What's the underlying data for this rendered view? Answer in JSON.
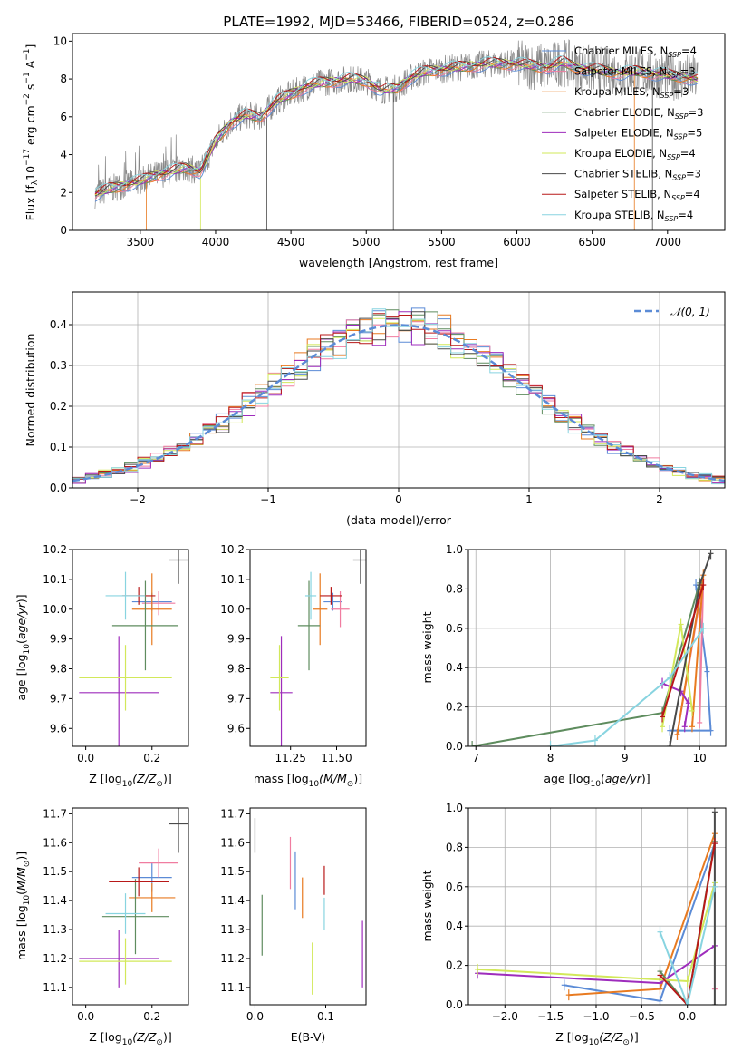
{
  "title": "PLATE=1992, MJD=53466, FIBERID=0524, z=0.286",
  "colors": {
    "Chabrier MILES": "#5b8bd6",
    "Salpeter MILES": "#f07ca0",
    "Kroupa MILES": "#e87a20",
    "Chabrier ELODIE": "#5e8c5e",
    "Salpeter ELODIE": "#9e2cbc",
    "Kroupa ELODIE": "#d2e85a",
    "Chabrier STELIB": "#4a4a4a",
    "Salpeter STELIB": "#b81818",
    "Kroupa STELIB": "#88d4e0",
    "data": "#888888",
    "normal": "#5b8bd6"
  },
  "chart_data": [
    {
      "id": "spectrum",
      "type": "line",
      "title": "PLATE=1992, MJD=53466, FIBERID=0524, z=0.286",
      "xlabel": "wavelength [Angstrom, rest frame]",
      "ylabel_parts": [
        "Flux [f",
        "λ",
        "10",
        "−17",
        " erg cm",
        "−2",
        " s",
        "−1",
        " A",
        "−1",
        "]"
      ],
      "xlim": [
        3050,
        7380
      ],
      "ylim": [
        0,
        10.4
      ],
      "xticks": [
        3500,
        4000,
        4500,
        5000,
        5500,
        6000,
        6500,
        7000
      ],
      "yticks": [
        0,
        2,
        4,
        6,
        8,
        10
      ],
      "continuum": {
        "x": [
          3200,
          3300,
          3400,
          3500,
          3600,
          3700,
          3800,
          3900,
          4000,
          4100,
          4200,
          4300,
          4400,
          4500,
          4600,
          4700,
          4800,
          4900,
          5000,
          5100,
          5200,
          5300,
          5400,
          5500,
          5600,
          5700,
          5800,
          5900,
          6000,
          6100,
          6200,
          6300,
          6400,
          6500,
          6600,
          6700,
          6800,
          6900,
          7000,
          7100,
          7200
        ],
        "y": [
          1.9,
          2.2,
          2.4,
          2.6,
          2.9,
          3.1,
          3.3,
          3.1,
          4.7,
          5.7,
          6.1,
          6.0,
          6.8,
          7.2,
          7.6,
          7.8,
          7.9,
          8.0,
          7.9,
          7.4,
          7.5,
          8.1,
          8.4,
          8.5,
          8.6,
          8.7,
          8.8,
          8.8,
          8.8,
          8.7,
          8.6,
          8.9,
          8.6,
          8.5,
          8.4,
          8.3,
          8.4,
          8.3,
          8.2,
          8.1,
          8.0
        ]
      },
      "legend": [
        {
          "name": "Chabrier MILES",
          "n": "4"
        },
        {
          "name": "Salpeter MILES",
          "n": "3"
        },
        {
          "name": "Kroupa MILES",
          "n": "3"
        },
        {
          "name": "Chabrier ELODIE",
          "n": "3"
        },
        {
          "name": "Salpeter ELODIE",
          "n": "5"
        },
        {
          "name": "Kroupa ELODIE",
          "n": "4"
        },
        {
          "name": "Chabrier STELIB",
          "n": "3"
        },
        {
          "name": "Salpeter STELIB",
          "n": "4"
        },
        {
          "name": "Kroupa STELIB",
          "n": "4"
        }
      ],
      "legend_nssp_label": "N",
      "legend_nssp_sub": "SSP",
      "legend_location": "right"
    },
    {
      "id": "residuals",
      "type": "line",
      "xlabel": "(data-model)/error",
      "ylabel": "Normed distribution",
      "xlim": [
        -2.5,
        2.5
      ],
      "ylim": [
        0,
        0.48
      ],
      "xticks": [
        -2,
        -1,
        0,
        1,
        2
      ],
      "xticklabels": [
        "−2",
        "−1",
        "0",
        "1",
        "2"
      ],
      "yticks": [
        0.0,
        0.1,
        0.2,
        0.3,
        0.4
      ],
      "yticklabels": [
        "0.0",
        "0.1",
        "0.2",
        "0.3",
        "0.4"
      ],
      "bin_width": 0.1,
      "legend": "𝒩(0, 1)",
      "legend_location": "top-right",
      "grid": true
    },
    {
      "id": "age_vs_Z",
      "type": "scatter",
      "xlabel_main": "Z [log",
      "xlabel_sub": "10",
      "xlabel_tail": "(Z/Z",
      "xlabel_end": ")]",
      "ylabel": "age  [log10(age/yr)]",
      "xlim": [
        -0.04,
        0.31
      ],
      "ylim": [
        9.54,
        10.2
      ],
      "xticks": [
        0.0,
        0.2
      ],
      "xticklabels": [
        "0.0",
        "0.2"
      ],
      "yticks": [
        9.6,
        9.7,
        9.8,
        9.9,
        10.0,
        10.1,
        10.2
      ],
      "yticklabels": [
        "9.6",
        "9.7",
        "9.8",
        "9.9",
        "10.0",
        "10.1",
        "10.2"
      ],
      "points": [
        {
          "series": "Chabrier MILES",
          "x": 0.2,
          "y": 10.025,
          "xerr": 0.06,
          "yerr": 0.03
        },
        {
          "series": "Salpeter MILES",
          "x": 0.22,
          "y": 10.02,
          "xerr": 0.05,
          "yerr": 0.04
        },
        {
          "series": "Kroupa MILES",
          "x": 0.2,
          "y": 10.0,
          "xerr": 0.06,
          "yerr": 0.12
        },
        {
          "series": "Chabrier ELODIE",
          "x": 0.18,
          "y": 9.945,
          "xerr": 0.1,
          "yerr": 0.15
        },
        {
          "series": "Salpeter ELODIE",
          "x": 0.1,
          "y": 9.72,
          "xerr": 0.12,
          "yerr": 0.19
        },
        {
          "series": "Kroupa ELODIE",
          "x": 0.12,
          "y": 9.77,
          "xerr": 0.14,
          "yerr": 0.11
        },
        {
          "series": "Chabrier STELIB",
          "x": 0.28,
          "y": 10.165,
          "xerr": 0.03,
          "yerr": 0.08
        },
        {
          "series": "Salpeter STELIB",
          "x": 0.16,
          "y": 10.045,
          "xerr": 0.05,
          "yerr": 0.03
        },
        {
          "series": "Kroupa STELIB",
          "x": 0.12,
          "y": 10.045,
          "xerr": 0.06,
          "yerr": 0.08
        }
      ]
    },
    {
      "id": "age_vs_mass",
      "type": "scatter",
      "xlabel_main": "mass [log",
      "xlabel_sub": "10",
      "xlabel_tail": "(M/M",
      "xlabel_end": ")]",
      "xlim": [
        11.03,
        11.66
      ],
      "ylim": [
        9.54,
        10.2
      ],
      "xticks": [
        11.25,
        11.5
      ],
      "xticklabels": [
        "11.25",
        "11.50"
      ],
      "yticks": [
        9.6,
        9.7,
        9.8,
        9.9,
        10.0,
        10.1,
        10.2
      ],
      "yticklabels": [
        "9.6",
        "9.7",
        "9.8",
        "9.9",
        "10.0",
        "10.1",
        "10.2"
      ],
      "points": [
        {
          "series": "Chabrier MILES",
          "x": 11.48,
          "y": 10.025,
          "xerr": 0.05,
          "yerr": 0.03
        },
        {
          "series": "Salpeter MILES",
          "x": 11.52,
          "y": 10.0,
          "xerr": 0.05,
          "yerr": 0.06
        },
        {
          "series": "Kroupa MILES",
          "x": 11.41,
          "y": 10.0,
          "xerr": 0.04,
          "yerr": 0.12
        },
        {
          "series": "Chabrier ELODIE",
          "x": 11.35,
          "y": 9.945,
          "xerr": 0.06,
          "yerr": 0.15
        },
        {
          "series": "Salpeter ELODIE",
          "x": 11.2,
          "y": 9.72,
          "xerr": 0.06,
          "yerr": 0.19
        },
        {
          "series": "Kroupa ELODIE",
          "x": 11.19,
          "y": 9.77,
          "xerr": 0.05,
          "yerr": 0.11
        },
        {
          "series": "Chabrier STELIB",
          "x": 11.63,
          "y": 10.165,
          "xerr": 0.04,
          "yerr": 0.08
        },
        {
          "series": "Salpeter STELIB",
          "x": 11.47,
          "y": 10.045,
          "xerr": 0.06,
          "yerr": 0.03
        },
        {
          "series": "Kroupa STELIB",
          "x": 11.36,
          "y": 10.045,
          "xerr": 0.03,
          "yerr": 0.08
        }
      ]
    },
    {
      "id": "weight_vs_age",
      "type": "line",
      "xlabel": "age  [log10(age/yr)]",
      "ylabel": "mass weight",
      "xlim": [
        6.9,
        10.35
      ],
      "ylim": [
        0,
        1.0
      ],
      "xticks": [
        7,
        8,
        9,
        10
      ],
      "xticklabels": [
        "7",
        "8",
        "9",
        "10"
      ],
      "yticks": [
        0.0,
        0.2,
        0.4,
        0.6,
        0.8,
        1.0
      ],
      "yticklabels": [
        "0.0",
        "0.2",
        "0.4",
        "0.6",
        "0.8",
        "1.0"
      ],
      "grid": true,
      "series": [
        {
          "name": "Chabrier MILES",
          "x": [
            9.95,
            10.1,
            10.15,
            9.6
          ],
          "y": [
            0.82,
            0.38,
            0.08,
            0.08
          ]
        },
        {
          "name": "Salpeter MILES",
          "x": [
            9.7,
            10.05,
            10.0
          ],
          "y": [
            0.06,
            0.85,
            0.12
          ]
        },
        {
          "name": "Kroupa MILES",
          "x": [
            9.7,
            10.05,
            9.9
          ],
          "y": [
            0.06,
            0.87,
            0.1
          ]
        },
        {
          "name": "Chabrier ELODIE",
          "x": [
            6.95,
            9.5,
            10.0
          ],
          "y": [
            0.0,
            0.17,
            0.83
          ]
        },
        {
          "name": "Salpeter ELODIE",
          "x": [
            9.5,
            9.75,
            9.85,
            9.8
          ],
          "y": [
            0.32,
            0.28,
            0.22,
            0.1
          ]
        },
        {
          "name": "Kroupa ELODIE",
          "x": [
            9.5,
            9.75,
            9.9
          ],
          "y": [
            0.1,
            0.62,
            0.18
          ]
        },
        {
          "name": "Chabrier STELIB",
          "x": [
            9.6,
            10.0,
            10.15
          ],
          "y": [
            0.0,
            0.82,
            0.98
          ]
        },
        {
          "name": "Salpeter STELIB",
          "x": [
            9.5,
            10.05
          ],
          "y": [
            0.15,
            0.82
          ]
        },
        {
          "name": "Kroupa STELIB",
          "x": [
            8.0,
            8.6,
            9.6,
            10.05
          ],
          "y": [
            0.0,
            0.03,
            0.35,
            0.6
          ]
        }
      ]
    },
    {
      "id": "mass_vs_Z",
      "type": "scatter",
      "xlabel_main": "Z [log",
      "xlabel_sub": "10",
      "xlabel_tail": "(Z/Z",
      "xlabel_end": ")]",
      "ylabel": "mass [log10(M/M⊙)]",
      "xlim": [
        -0.04,
        0.31
      ],
      "ylim": [
        11.04,
        11.72
      ],
      "xticks": [
        0.0,
        0.2
      ],
      "xticklabels": [
        "0.0",
        "0.2"
      ],
      "yticks": [
        11.1,
        11.2,
        11.3,
        11.4,
        11.5,
        11.6,
        11.7
      ],
      "yticklabels": [
        "11.1",
        "11.2",
        "11.3",
        "11.4",
        "11.5",
        "11.6",
        "11.7"
      ],
      "points": [
        {
          "series": "Chabrier MILES",
          "x": 0.2,
          "y": 11.48,
          "xerr": 0.06,
          "yerr": 0.05
        },
        {
          "series": "Salpeter MILES",
          "x": 0.22,
          "y": 11.53,
          "xerr": 0.06,
          "yerr": 0.05
        },
        {
          "series": "Kroupa MILES",
          "x": 0.2,
          "y": 11.41,
          "xerr": 0.07,
          "yerr": 0.05
        },
        {
          "series": "Chabrier ELODIE",
          "x": 0.15,
          "y": 11.345,
          "xerr": 0.1,
          "yerr": 0.13
        },
        {
          "series": "Salpeter ELODIE",
          "x": 0.1,
          "y": 11.2,
          "xerr": 0.12,
          "yerr": 0.1
        },
        {
          "series": "Kroupa ELODIE",
          "x": 0.12,
          "y": 11.19,
          "xerr": 0.14,
          "yerr": 0.08
        },
        {
          "series": "Chabrier STELIB",
          "x": 0.28,
          "y": 11.665,
          "xerr": 0.03,
          "yerr": 0.1
        },
        {
          "series": "Salpeter STELIB",
          "x": 0.16,
          "y": 11.465,
          "xerr": 0.09,
          "yerr": 0.05
        },
        {
          "series": "Kroupa STELIB",
          "x": 0.12,
          "y": 11.355,
          "xerr": 0.06,
          "yerr": 0.07
        }
      ]
    },
    {
      "id": "mass_vs_ebv",
      "type": "scatter",
      "xlabel": "E(B-V)",
      "xlim": [
        -0.007,
        0.157
      ],
      "ylim": [
        11.04,
        11.72
      ],
      "xticks": [
        0.0,
        0.1
      ],
      "xticklabels": [
        "0.0",
        "0.1"
      ],
      "yticks": [
        11.1,
        11.2,
        11.3,
        11.4,
        11.5,
        11.6,
        11.7
      ],
      "yticklabels": [
        "11.1",
        "11.2",
        "11.3",
        "11.4",
        "11.5",
        "11.6",
        "11.7"
      ],
      "points": [
        {
          "series": "Chabrier MILES",
          "x": 0.057,
          "y": 11.47,
          "xerr": 0,
          "yerr": 0.1
        },
        {
          "series": "Salpeter MILES",
          "x": 0.05,
          "y": 11.53,
          "xerr": 0,
          "yerr": 0.09
        },
        {
          "series": "Kroupa MILES",
          "x": 0.067,
          "y": 11.41,
          "xerr": 0,
          "yerr": 0.07
        },
        {
          "series": "Chabrier ELODIE",
          "x": 0.01,
          "y": 11.315,
          "xerr": 0,
          "yerr": 0.105
        },
        {
          "series": "Salpeter ELODIE",
          "x": 0.152,
          "y": 11.215,
          "xerr": 0,
          "yerr": 0.115
        },
        {
          "series": "Kroupa ELODIE",
          "x": 0.081,
          "y": 11.165,
          "xerr": 0,
          "yerr": 0.09
        },
        {
          "series": "Chabrier STELIB",
          "x": 0.0,
          "y": 11.625,
          "xerr": 0,
          "yerr": 0.06
        },
        {
          "series": "Salpeter STELIB",
          "x": 0.098,
          "y": 11.47,
          "xerr": 0,
          "yerr": 0.05
        },
        {
          "series": "Kroupa STELIB",
          "x": 0.098,
          "y": 11.355,
          "xerr": 0,
          "yerr": 0.055
        }
      ]
    },
    {
      "id": "weight_vs_Z",
      "type": "line",
      "xlabel_main": "Z [log",
      "xlabel_sub": "10",
      "xlabel_tail": "(Z/Z",
      "xlabel_end": ")]",
      "ylabel": "mass weight",
      "xlim": [
        -2.4,
        0.42
      ],
      "ylim": [
        0,
        1.0
      ],
      "xticks": [
        -2.0,
        -1.5,
        -1.0,
        -0.5,
        0.0
      ],
      "xticklabels": [
        "−2.0",
        "−1.5",
        "−1.0",
        "−0.5",
        "0.0"
      ],
      "yticks": [
        0.0,
        0.2,
        0.4,
        0.6,
        0.8,
        1.0
      ],
      "yticklabels": [
        "0.0",
        "0.2",
        "0.4",
        "0.6",
        "0.8",
        "1.0"
      ],
      "grid": true,
      "series": [
        {
          "name": "Chabrier MILES",
          "x": [
            -1.35,
            -0.3,
            0.3
          ],
          "y": [
            0.1,
            0.02,
            0.82
          ]
        },
        {
          "name": "Salpeter MILES",
          "x": [
            0.3
          ],
          "y": [
            0.08
          ]
        },
        {
          "name": "Kroupa MILES",
          "x": [
            -1.3,
            -0.3,
            0.3
          ],
          "y": [
            0.05,
            0.08,
            0.87
          ]
        },
        {
          "name": "Chabrier ELODIE",
          "x": [
            -0.3,
            0.0,
            0.3
          ],
          "y": [
            0.17,
            0.0,
            0.83
          ]
        },
        {
          "name": "Salpeter ELODIE",
          "x": [
            -2.3,
            -0.3,
            0.3
          ],
          "y": [
            0.16,
            0.11,
            0.3
          ]
        },
        {
          "name": "Kroupa ELODIE",
          "x": [
            -2.3,
            0.0,
            0.3
          ],
          "y": [
            0.18,
            0.12,
            0.62
          ]
        },
        {
          "name": "Chabrier STELIB",
          "x": [
            0.3,
            0.3
          ],
          "y": [
            0.0,
            0.98
          ]
        },
        {
          "name": "Salpeter STELIB",
          "x": [
            -0.3,
            0.0,
            0.3
          ],
          "y": [
            0.15,
            0.0,
            0.82
          ]
        },
        {
          "name": "Kroupa STELIB",
          "x": [
            -0.3,
            0.0,
            0.3
          ],
          "y": [
            0.37,
            0.0,
            0.6
          ]
        }
      ]
    }
  ]
}
